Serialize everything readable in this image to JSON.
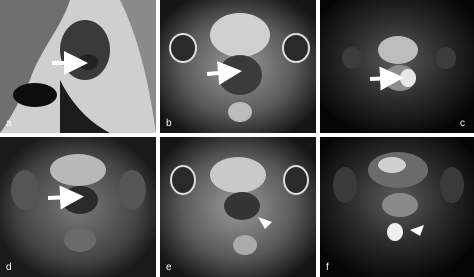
{
  "panels": [
    {
      "label": "a"
    },
    {
      "label": "b"
    },
    {
      "label": "c"
    },
    {
      "label": "d"
    },
    {
      "label": "e"
    },
    {
      "label": "f"
    }
  ]
}
